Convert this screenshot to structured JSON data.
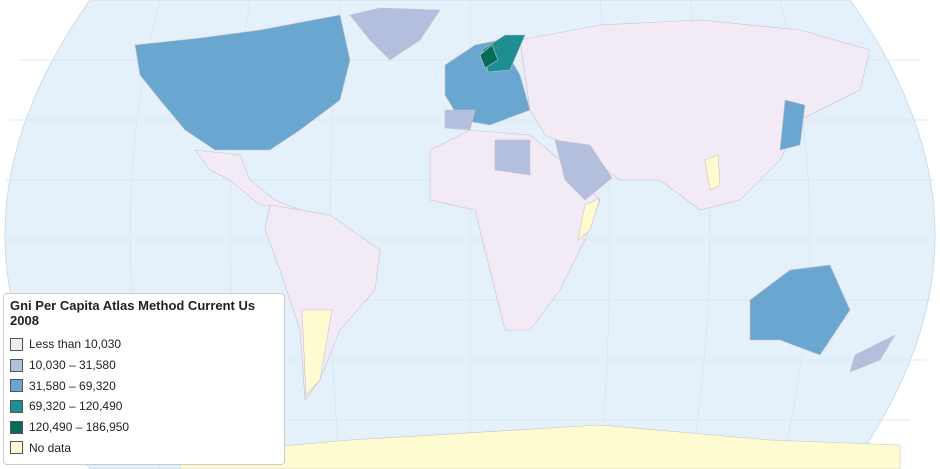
{
  "legend": {
    "title": "Gni Per Capita Atlas Method Current Us 2008",
    "items": [
      {
        "label": "Less than 10,030",
        "color": "#f2eaf4"
      },
      {
        "label": "10,030 – 31,580",
        "color": "#b4bedd"
      },
      {
        "label": "31,580 – 69,320",
        "color": "#69a7d1"
      },
      {
        "label": "69,320 – 120,490",
        "color": "#1d8e91"
      },
      {
        "label": "120,490 – 186,950",
        "color": "#036b58"
      },
      {
        "label": "No data",
        "color": "#fdfbcf"
      }
    ]
  }
}
